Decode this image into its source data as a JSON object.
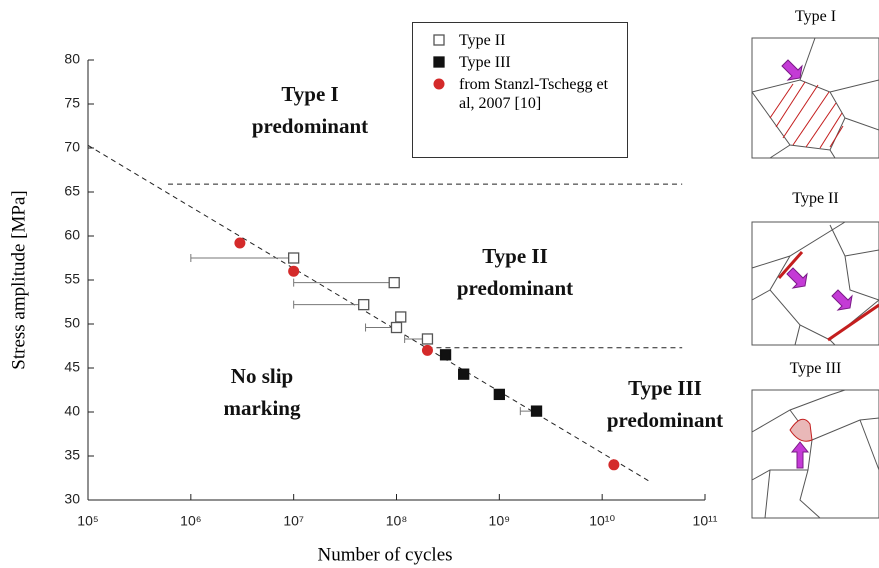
{
  "chart_data": {
    "type": "scatter",
    "x_label": "Number of cycles",
    "y_label": "Stress amplitude [MPa]",
    "xlim": [
      100000,
      100000000000
    ],
    "log_x": true,
    "xticks": [
      {
        "value": 100000,
        "label": "10⁵"
      },
      {
        "value": 1000000,
        "label": "10⁶"
      },
      {
        "value": 10000000,
        "label": "10⁷"
      },
      {
        "value": 100000000,
        "label": "10⁸"
      },
      {
        "value": 1000000000,
        "label": "10⁹"
      },
      {
        "value": 10000000000,
        "label": "10¹⁰"
      },
      {
        "value": 100000000000,
        "label": "10¹¹"
      }
    ],
    "ylim": [
      30,
      80
    ],
    "yticks": [
      30,
      35,
      40,
      45,
      50,
      55,
      60,
      65,
      70,
      75,
      80
    ],
    "series": [
      {
        "name": "Type II",
        "color": "#555555",
        "marker": "open-square",
        "x": [
          10000000,
          95000000,
          48000000,
          110000000,
          100000000,
          200000000
        ],
        "values": [
          57.5,
          54.7,
          52.2,
          50.8,
          49.6,
          48.3
        ],
        "x_low": [
          1000000,
          10000000,
          10000000,
          null,
          50000000,
          120000000
        ]
      },
      {
        "name": "Type III",
        "color": "#111111",
        "marker": "square",
        "x": [
          300000000,
          450000000,
          1000000000,
          2300000000
        ],
        "values": [
          46.5,
          44.3,
          42.0,
          40.1
        ],
        "x_low": [
          null,
          null,
          null,
          1600000000
        ]
      },
      {
        "name": "from Stanzl-Tschegg et al, 2007 [10]",
        "color": "#d42a2a",
        "marker": "circle",
        "x": [
          3000000,
          10000000,
          200000000,
          13000000000
        ],
        "values": [
          59.2,
          56.0,
          47.0,
          34.0
        ],
        "x_low": [
          null,
          null,
          null,
          null
        ]
      }
    ],
    "reference_lines": [
      {
        "x": [
          100000,
          30000000000
        ],
        "values": [
          70.3,
          32.0
        ]
      },
      {
        "x": [
          600000,
          60000000000
        ],
        "values": [
          65.9,
          65.9
        ]
      },
      {
        "x": [
          200000000,
          60000000000
        ],
        "values": [
          47.3,
          47.3
        ]
      }
    ],
    "annotations": [
      [
        "Type I",
        "predominant"
      ],
      [
        "Type II",
        "predominant"
      ],
      [
        "No slip",
        "marking"
      ],
      [
        "Type III",
        "predominant"
      ]
    ]
  },
  "panels": [
    {
      "title": "Type I"
    },
    {
      "title": "Type II"
    },
    {
      "title": "Type III"
    }
  ]
}
